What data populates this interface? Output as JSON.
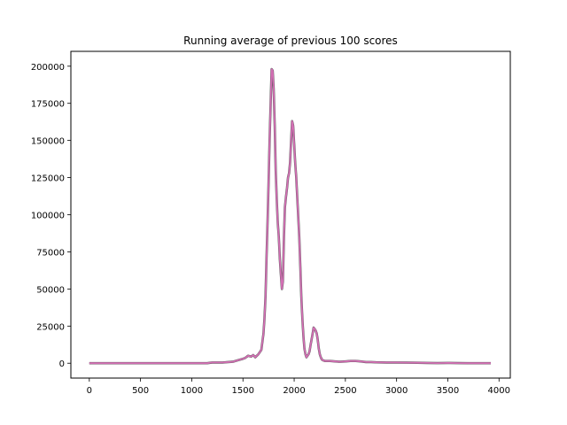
{
  "chart_data": {
    "type": "line",
    "title": "Running average of previous 100 scores",
    "xlabel": "",
    "ylabel": "",
    "xlim": [
      -180,
      4110
    ],
    "ylim": [
      -10000,
      210000
    ],
    "xticks": [
      0,
      500,
      1000,
      1500,
      2000,
      2500,
      3000,
      3500,
      4000
    ],
    "yticks": [
      0,
      25000,
      50000,
      75000,
      100000,
      125000,
      150000,
      175000,
      200000
    ],
    "grid": false,
    "legend": "none",
    "line_color": "#d36fb4",
    "edge_color": "#555555",
    "series": [
      {
        "x": [
          0,
          200,
          400,
          600,
          800,
          1000,
          1150,
          1200,
          1300,
          1400,
          1450,
          1500,
          1520,
          1550,
          1580,
          1600,
          1620,
          1650,
          1680,
          1700,
          1710,
          1720,
          1730,
          1740,
          1750,
          1760,
          1770,
          1780,
          1790,
          1800,
          1810,
          1820,
          1830,
          1840,
          1850,
          1860,
          1870,
          1880,
          1890,
          1900,
          1910,
          1920,
          1930,
          1940,
          1950,
          1960,
          1970,
          1980,
          1990,
          2000,
          2010,
          2020,
          2030,
          2040,
          2050,
          2060,
          2070,
          2080,
          2090,
          2100,
          2110,
          2120,
          2130,
          2140,
          2150,
          2160,
          2170,
          2180,
          2190,
          2200,
          2210,
          2220,
          2230,
          2240,
          2250,
          2260,
          2270,
          2280,
          2290,
          2300,
          2320,
          2350,
          2400,
          2450,
          2500,
          2550,
          2600,
          2650,
          2700,
          2750,
          2800,
          2900,
          3000,
          3100,
          3200,
          3300,
          3400,
          3500,
          3600,
          3700,
          3800,
          3920
        ],
        "y": [
          0,
          0,
          0,
          0,
          0,
          0,
          0,
          500,
          500,
          1000,
          2000,
          3000,
          3500,
          5000,
          4500,
          5500,
          4000,
          6000,
          9000,
          20000,
          30000,
          45000,
          70000,
          95000,
          120000,
          150000,
          175000,
          198000,
          197000,
          185000,
          160000,
          130000,
          110000,
          95000,
          85000,
          70000,
          60000,
          50000,
          55000,
          85000,
          105000,
          112000,
          118000,
          125000,
          128000,
          135000,
          150000,
          163000,
          160000,
          148000,
          135000,
          125000,
          112000,
          98000,
          85000,
          65000,
          45000,
          30000,
          18000,
          10000,
          6000,
          4000,
          5000,
          6000,
          8000,
          12000,
          16000,
          20000,
          24000,
          23000,
          22000,
          20000,
          16000,
          10000,
          6000,
          4000,
          2500,
          2000,
          1800,
          1500,
          1500,
          1500,
          1200,
          1000,
          1200,
          1500,
          1500,
          1200,
          800,
          800,
          600,
          500,
          500,
          400,
          300,
          200,
          100,
          200,
          100,
          0,
          0,
          0
        ]
      }
    ]
  }
}
